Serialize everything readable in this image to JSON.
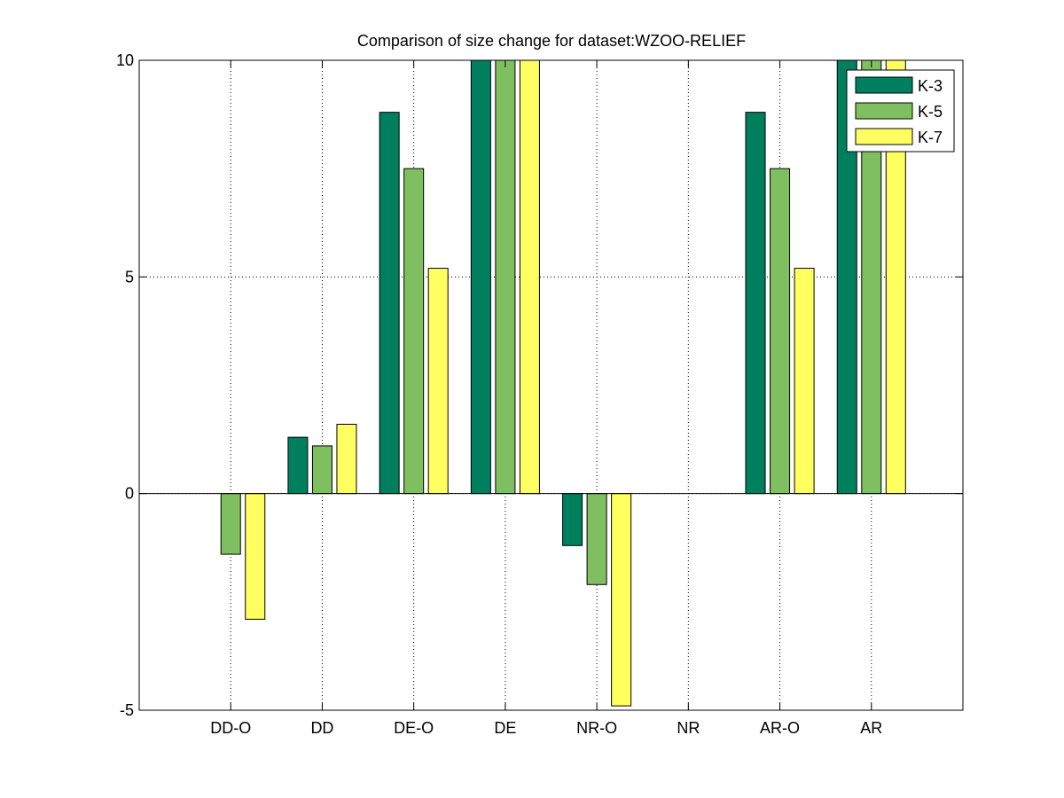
{
  "chart_data": {
    "type": "bar",
    "title": "Comparison of size change for dataset:WZOO-RELIEF",
    "xlabel": "",
    "ylabel": "",
    "categories": [
      "DD-O",
      "DD",
      "DE-O",
      "DE",
      "NR-O",
      "NR",
      "AR-O",
      "AR"
    ],
    "ylim": [
      -5,
      10
    ],
    "yticks": [
      -5,
      0,
      5,
      10
    ],
    "grid": true,
    "legend_position": "top-right",
    "series": [
      {
        "name": "K-3",
        "color": "#007f5f",
        "values": [
          0,
          1.3,
          8.8,
          10,
          -1.2,
          0,
          8.8,
          10
        ]
      },
      {
        "name": "K-5",
        "color": "#7fbf5f",
        "values": [
          -1.4,
          1.1,
          7.5,
          10,
          -2.1,
          0,
          7.5,
          10
        ]
      },
      {
        "name": "K-7",
        "color": "#ffff5f",
        "values": [
          -2.9,
          1.6,
          5.2,
          10,
          -4.9,
          0,
          5.2,
          10
        ]
      }
    ]
  }
}
